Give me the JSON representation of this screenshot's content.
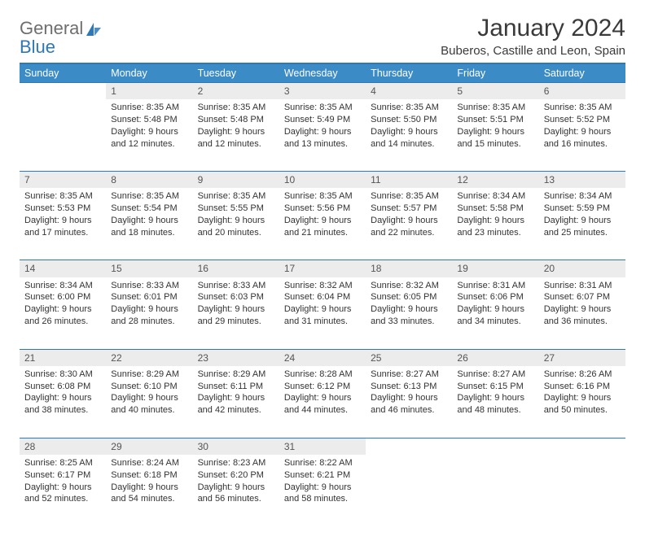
{
  "logo": {
    "line1": "General",
    "line2": "Blue"
  },
  "title": "January 2024",
  "location": "Buberos, Castille and Leon, Spain",
  "colors": {
    "header_bg": "#3b8bc7",
    "header_text": "#ffffff",
    "daynum_bg": "#ececec",
    "rule": "#2f78b7",
    "logo_gray": "#6e6e6e",
    "logo_blue": "#2f78b7"
  },
  "weekdays": [
    "Sunday",
    "Monday",
    "Tuesday",
    "Wednesday",
    "Thursday",
    "Friday",
    "Saturday"
  ],
  "first_weekday_index": 1,
  "days": [
    {
      "n": 1,
      "sunrise": "8:35 AM",
      "sunset": "5:48 PM",
      "daylight": "9 hours and 12 minutes."
    },
    {
      "n": 2,
      "sunrise": "8:35 AM",
      "sunset": "5:48 PM",
      "daylight": "9 hours and 12 minutes."
    },
    {
      "n": 3,
      "sunrise": "8:35 AM",
      "sunset": "5:49 PM",
      "daylight": "9 hours and 13 minutes."
    },
    {
      "n": 4,
      "sunrise": "8:35 AM",
      "sunset": "5:50 PM",
      "daylight": "9 hours and 14 minutes."
    },
    {
      "n": 5,
      "sunrise": "8:35 AM",
      "sunset": "5:51 PM",
      "daylight": "9 hours and 15 minutes."
    },
    {
      "n": 6,
      "sunrise": "8:35 AM",
      "sunset": "5:52 PM",
      "daylight": "9 hours and 16 minutes."
    },
    {
      "n": 7,
      "sunrise": "8:35 AM",
      "sunset": "5:53 PM",
      "daylight": "9 hours and 17 minutes."
    },
    {
      "n": 8,
      "sunrise": "8:35 AM",
      "sunset": "5:54 PM",
      "daylight": "9 hours and 18 minutes."
    },
    {
      "n": 9,
      "sunrise": "8:35 AM",
      "sunset": "5:55 PM",
      "daylight": "9 hours and 20 minutes."
    },
    {
      "n": 10,
      "sunrise": "8:35 AM",
      "sunset": "5:56 PM",
      "daylight": "9 hours and 21 minutes."
    },
    {
      "n": 11,
      "sunrise": "8:35 AM",
      "sunset": "5:57 PM",
      "daylight": "9 hours and 22 minutes."
    },
    {
      "n": 12,
      "sunrise": "8:34 AM",
      "sunset": "5:58 PM",
      "daylight": "9 hours and 23 minutes."
    },
    {
      "n": 13,
      "sunrise": "8:34 AM",
      "sunset": "5:59 PM",
      "daylight": "9 hours and 25 minutes."
    },
    {
      "n": 14,
      "sunrise": "8:34 AM",
      "sunset": "6:00 PM",
      "daylight": "9 hours and 26 minutes."
    },
    {
      "n": 15,
      "sunrise": "8:33 AM",
      "sunset": "6:01 PM",
      "daylight": "9 hours and 28 minutes."
    },
    {
      "n": 16,
      "sunrise": "8:33 AM",
      "sunset": "6:03 PM",
      "daylight": "9 hours and 29 minutes."
    },
    {
      "n": 17,
      "sunrise": "8:32 AM",
      "sunset": "6:04 PM",
      "daylight": "9 hours and 31 minutes."
    },
    {
      "n": 18,
      "sunrise": "8:32 AM",
      "sunset": "6:05 PM",
      "daylight": "9 hours and 33 minutes."
    },
    {
      "n": 19,
      "sunrise": "8:31 AM",
      "sunset": "6:06 PM",
      "daylight": "9 hours and 34 minutes."
    },
    {
      "n": 20,
      "sunrise": "8:31 AM",
      "sunset": "6:07 PM",
      "daylight": "9 hours and 36 minutes."
    },
    {
      "n": 21,
      "sunrise": "8:30 AM",
      "sunset": "6:08 PM",
      "daylight": "9 hours and 38 minutes."
    },
    {
      "n": 22,
      "sunrise": "8:29 AM",
      "sunset": "6:10 PM",
      "daylight": "9 hours and 40 minutes."
    },
    {
      "n": 23,
      "sunrise": "8:29 AM",
      "sunset": "6:11 PM",
      "daylight": "9 hours and 42 minutes."
    },
    {
      "n": 24,
      "sunrise": "8:28 AM",
      "sunset": "6:12 PM",
      "daylight": "9 hours and 44 minutes."
    },
    {
      "n": 25,
      "sunrise": "8:27 AM",
      "sunset": "6:13 PM",
      "daylight": "9 hours and 46 minutes."
    },
    {
      "n": 26,
      "sunrise": "8:27 AM",
      "sunset": "6:15 PM",
      "daylight": "9 hours and 48 minutes."
    },
    {
      "n": 27,
      "sunrise": "8:26 AM",
      "sunset": "6:16 PM",
      "daylight": "9 hours and 50 minutes."
    },
    {
      "n": 28,
      "sunrise": "8:25 AM",
      "sunset": "6:17 PM",
      "daylight": "9 hours and 52 minutes."
    },
    {
      "n": 29,
      "sunrise": "8:24 AM",
      "sunset": "6:18 PM",
      "daylight": "9 hours and 54 minutes."
    },
    {
      "n": 30,
      "sunrise": "8:23 AM",
      "sunset": "6:20 PM",
      "daylight": "9 hours and 56 minutes."
    },
    {
      "n": 31,
      "sunrise": "8:22 AM",
      "sunset": "6:21 PM",
      "daylight": "9 hours and 58 minutes."
    }
  ],
  "labels": {
    "sunrise": "Sunrise:",
    "sunset": "Sunset:",
    "daylight": "Daylight:"
  }
}
